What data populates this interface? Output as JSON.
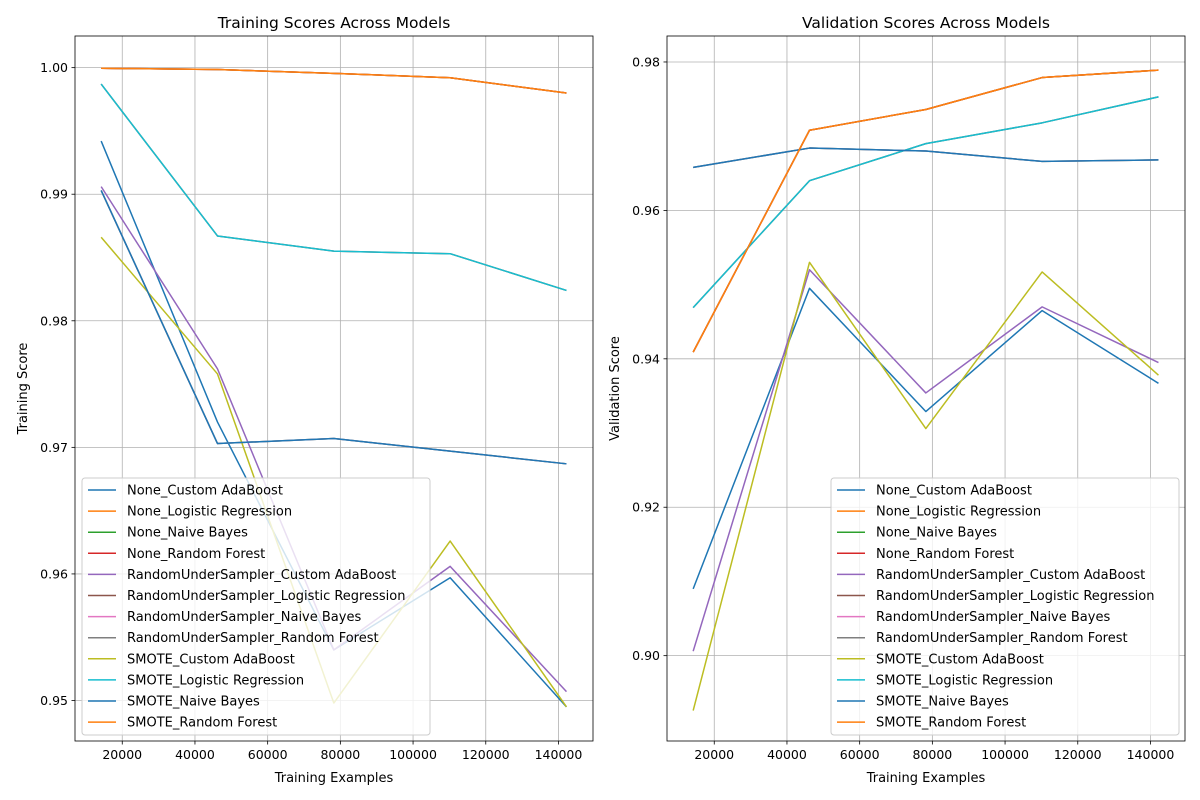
{
  "chart_data": [
    {
      "type": "line",
      "title": "Training Scores Across Models",
      "xlabel": "Training Examples",
      "ylabel": "Training Score",
      "xlim": [
        7000,
        149500
      ],
      "ylim": [
        0.9468,
        1.0025
      ],
      "xticks": [
        20000,
        40000,
        60000,
        80000,
        100000,
        120000,
        140000
      ],
      "yticks": [
        0.95,
        0.96,
        0.97,
        0.98,
        0.99,
        1.0
      ],
      "ytick_labels": [
        "0.95",
        "0.96",
        "0.97",
        "0.98",
        "0.99",
        "1.00"
      ],
      "grid": true,
      "legend": "lower-left",
      "x": [
        14200,
        46200,
        78200,
        110200,
        142200
      ],
      "series": [
        {
          "name": "None_Custom AdaBoost",
          "color": "#1f77b4",
          "values": [
            0.9942,
            0.972,
            0.954,
            0.9597,
            0.9495
          ]
        },
        {
          "name": "None_Logistic Regression",
          "color": "#ff7f0e",
          "values": [
            0.99995,
            0.99985,
            0.99955,
            0.9992,
            0.998
          ]
        },
        {
          "name": "None_Naive Bayes",
          "color": "#2ca02c",
          "values": [
            0.9903,
            0.9703,
            0.9707,
            0.9697,
            0.9687
          ]
        },
        {
          "name": "None_Random Forest",
          "color": "#d62728",
          "values": [
            0.99995,
            0.99985,
            0.99955,
            0.9992,
            0.998
          ]
        },
        {
          "name": "RandomUnderSampler_Custom AdaBoost",
          "color": "#9467bd",
          "values": [
            0.9906,
            0.9762,
            0.954,
            0.9606,
            0.9507
          ]
        },
        {
          "name": "RandomUnderSampler_Logistic Regression",
          "color": "#8c564b",
          "values": [
            0.9987,
            0.9867,
            0.9855,
            0.9853,
            0.9824
          ]
        },
        {
          "name": "RandomUnderSampler_Naive Bayes",
          "color": "#e377c2",
          "values": [
            0.9903,
            0.9703,
            0.9707,
            0.9697,
            0.9687
          ]
        },
        {
          "name": "RandomUnderSampler_Random Forest",
          "color": "#7f7f7f",
          "values": [
            0.99995,
            0.99985,
            0.99955,
            0.9992,
            0.998
          ]
        },
        {
          "name": "SMOTE_Custom AdaBoost",
          "color": "#bcbd22",
          "values": [
            0.9866,
            0.9758,
            0.9498,
            0.9626,
            0.9495
          ]
        },
        {
          "name": "SMOTE_Logistic Regression",
          "color": "#17becf",
          "values": [
            0.9987,
            0.9867,
            0.9855,
            0.9853,
            0.9824
          ]
        },
        {
          "name": "SMOTE_Naive Bayes",
          "color": "#1f77b4",
          "values": [
            0.9903,
            0.9703,
            0.9707,
            0.9697,
            0.9687
          ]
        },
        {
          "name": "SMOTE_Random Forest",
          "color": "#ff7f0e",
          "values": [
            0.99995,
            0.99985,
            0.99955,
            0.9992,
            0.998
          ]
        }
      ]
    },
    {
      "type": "line",
      "title": "Validation Scores Across Models",
      "xlabel": "Training Examples",
      "ylabel": "Validation Score",
      "xlim": [
        7000,
        149500
      ],
      "ylim": [
        0.8885,
        0.9835
      ],
      "xticks": [
        20000,
        40000,
        60000,
        80000,
        100000,
        120000,
        140000
      ],
      "yticks": [
        0.9,
        0.92,
        0.94,
        0.96,
        0.98
      ],
      "ytick_labels": [
        "0.90",
        "0.92",
        "0.94",
        "0.96",
        "0.98"
      ],
      "grid": true,
      "legend": "lower-right",
      "x": [
        14200,
        46200,
        78200,
        110200,
        142200
      ],
      "series": [
        {
          "name": "None_Custom AdaBoost",
          "color": "#1f77b4",
          "values": [
            0.909,
            0.9495,
            0.9329,
            0.9465,
            0.9367
          ]
        },
        {
          "name": "None_Logistic Regression",
          "color": "#ff7f0e",
          "values": [
            0.9409,
            0.9708,
            0.9736,
            0.9779,
            0.9789
          ]
        },
        {
          "name": "None_Naive Bayes",
          "color": "#2ca02c",
          "values": [
            0.9658,
            0.9684,
            0.968,
            0.9666,
            0.9668
          ]
        },
        {
          "name": "None_Random Forest",
          "color": "#d62728",
          "values": [
            0.9409,
            0.9708,
            0.9736,
            0.9779,
            0.9789
          ]
        },
        {
          "name": "RandomUnderSampler_Custom AdaBoost",
          "color": "#9467bd",
          "values": [
            0.9006,
            0.952,
            0.9354,
            0.947,
            0.9395
          ]
        },
        {
          "name": "RandomUnderSampler_Logistic Regression",
          "color": "#8c564b",
          "values": [
            0.9469,
            0.964,
            0.969,
            0.9718,
            0.9753
          ]
        },
        {
          "name": "RandomUnderSampler_Naive Bayes",
          "color": "#e377c2",
          "values": [
            0.9658,
            0.9684,
            0.968,
            0.9666,
            0.9668
          ]
        },
        {
          "name": "RandomUnderSampler_Random Forest",
          "color": "#7f7f7f",
          "values": [
            0.9409,
            0.9708,
            0.9736,
            0.9779,
            0.9789
          ]
        },
        {
          "name": "SMOTE_Custom AdaBoost",
          "color": "#bcbd22",
          "values": [
            0.8926,
            0.953,
            0.9306,
            0.9517,
            0.9378
          ]
        },
        {
          "name": "SMOTE_Logistic Regression",
          "color": "#17becf",
          "values": [
            0.9469,
            0.964,
            0.969,
            0.9718,
            0.9753
          ]
        },
        {
          "name": "SMOTE_Naive Bayes",
          "color": "#1f77b4",
          "values": [
            0.9658,
            0.9684,
            0.968,
            0.9666,
            0.9668
          ]
        },
        {
          "name": "SMOTE_Random Forest",
          "color": "#ff7f0e",
          "values": [
            0.9409,
            0.9708,
            0.9736,
            0.9779,
            0.9789
          ]
        }
      ]
    }
  ]
}
